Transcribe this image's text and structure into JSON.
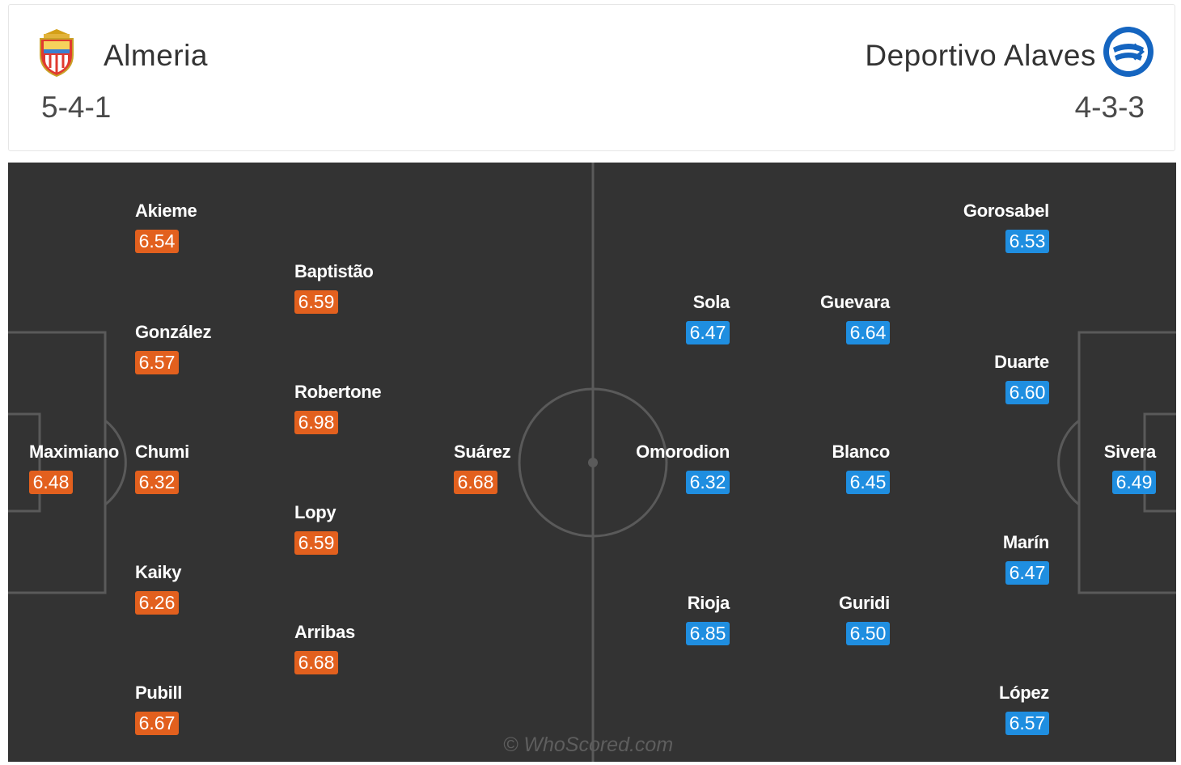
{
  "home": {
    "name": "Almeria",
    "formation": "5-4-1",
    "rating_color": "#e2601e",
    "players": [
      {
        "name": "Akieme",
        "rating": "6.54"
      },
      {
        "name": "Baptistão",
        "rating": "6.59"
      },
      {
        "name": "González",
        "rating": "6.57"
      },
      {
        "name": "Robertone",
        "rating": "6.98"
      },
      {
        "name": "Maximiano",
        "rating": "6.48"
      },
      {
        "name": "Chumi",
        "rating": "6.32"
      },
      {
        "name": "Suárez",
        "rating": "6.68"
      },
      {
        "name": "Lopy",
        "rating": "6.59"
      },
      {
        "name": "Kaiky",
        "rating": "6.26"
      },
      {
        "name": "Arribas",
        "rating": "6.68"
      },
      {
        "name": "Pubill",
        "rating": "6.67"
      }
    ]
  },
  "away": {
    "name": "Deportivo Alaves",
    "formation": "4-3-3",
    "rating_color": "#1f8ee0",
    "players": [
      {
        "name": "Gorosabel",
        "rating": "6.53"
      },
      {
        "name": "Sola",
        "rating": "6.47"
      },
      {
        "name": "Guevara",
        "rating": "6.64"
      },
      {
        "name": "Duarte",
        "rating": "6.60"
      },
      {
        "name": "Omorodion",
        "rating": "6.32"
      },
      {
        "name": "Blanco",
        "rating": "6.45"
      },
      {
        "name": "Sivera",
        "rating": "6.49"
      },
      {
        "name": "Marín",
        "rating": "6.47"
      },
      {
        "name": "Rioja",
        "rating": "6.85"
      },
      {
        "name": "Guridi",
        "rating": "6.50"
      },
      {
        "name": "López",
        "rating": "6.57"
      }
    ]
  },
  "icons": {
    "home_crest": "almeria-crest-icon",
    "away_crest": "alaves-crest-icon"
  },
  "watermark": "© WhoScored.com",
  "colors": {
    "pitch": "#333333",
    "lines": "#5a5a5a"
  }
}
